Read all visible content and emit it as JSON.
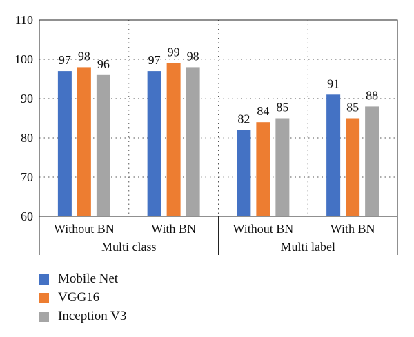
{
  "chart_data": {
    "type": "bar",
    "groups": [
      "Multi class",
      "Multi label"
    ],
    "categories": [
      "Without BN",
      "With BN",
      "Without BN",
      "With BN"
    ],
    "category_groups": [
      0,
      0,
      1,
      1
    ],
    "series": [
      {
        "name": "Mobile Net",
        "color": "#4472C4",
        "values": [
          97,
          97,
          82,
          91
        ]
      },
      {
        "name": "VGG16",
        "color": "#ED7D31",
        "values": [
          98,
          99,
          84,
          85
        ]
      },
      {
        "name": "Inception V3",
        "color": "#A5A5A5",
        "values": [
          96,
          98,
          85,
          88
        ]
      }
    ],
    "ylim": [
      60,
      110
    ],
    "yticks": [
      60,
      70,
      80,
      90,
      100,
      110
    ],
    "data_labels": true,
    "grid": "dotted",
    "legend_position": "bottom-left",
    "title": "",
    "xlabel": "",
    "ylabel": ""
  }
}
